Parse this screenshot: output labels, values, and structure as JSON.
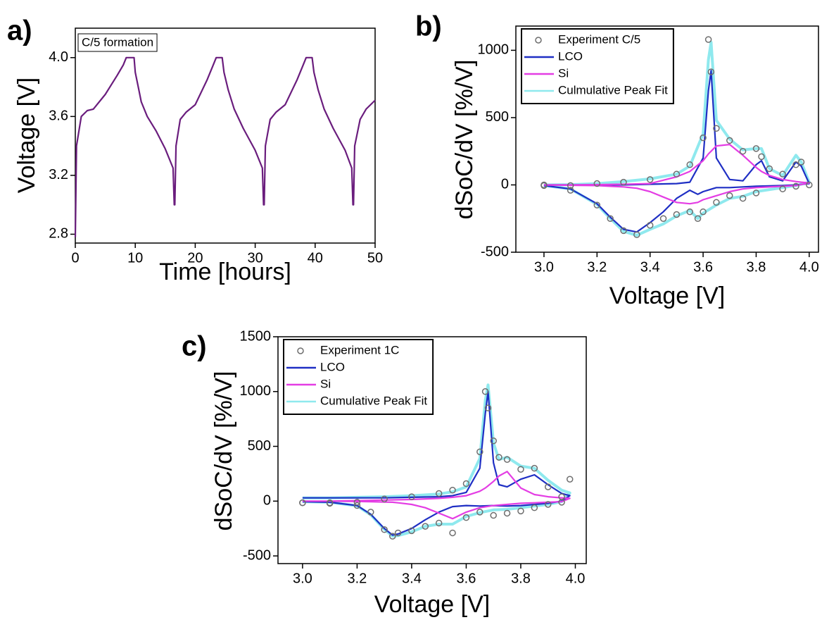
{
  "chart_data": [
    {
      "type": "line",
      "panel_label": "a)",
      "x_label": "Time [hours]",
      "y_label": "Voltage [V]",
      "annotation": "C/5 formation",
      "xlim": [
        0,
        50
      ],
      "ylim": [
        2.74,
        4.2
      ],
      "xticks": [
        0,
        10,
        20,
        30,
        40,
        50
      ],
      "yticks": [
        2.8,
        3.2,
        3.6,
        {
          "value": 4,
          "label": "4.0"
        }
      ],
      "x": [
        0,
        0.2,
        1,
        2,
        3,
        5,
        7,
        8,
        8.5,
        9.8,
        10,
        10.5,
        11,
        12,
        13.5,
        15,
        16.3,
        16.5,
        16.6,
        16.8,
        17.5,
        18.5,
        20,
        22,
        23,
        23.5,
        24.5,
        24.8,
        25.5,
        26.5,
        28,
        30,
        31.2,
        31.4,
        31.5,
        31.7,
        32.5,
        33.5,
        35,
        37,
        38,
        38.5,
        39.5,
        39.8,
        40.5,
        41.5,
        43,
        45,
        46.1,
        46.3,
        46.4,
        46.6,
        47.5,
        48.5,
        50
      ],
      "series": [
        {
          "color": "#6a1d7d",
          "values": [
            2.78,
            3.4,
            3.6,
            3.64,
            3.65,
            3.75,
            3.88,
            3.95,
            4.0,
            4.0,
            3.9,
            3.8,
            3.7,
            3.6,
            3.5,
            3.38,
            3.25,
            3.0,
            3.0,
            3.4,
            3.58,
            3.63,
            3.68,
            3.85,
            3.95,
            4.0,
            4.0,
            3.9,
            3.78,
            3.65,
            3.52,
            3.37,
            3.25,
            3.0,
            3.0,
            3.4,
            3.58,
            3.63,
            3.68,
            3.85,
            3.95,
            4.0,
            4.0,
            3.9,
            3.78,
            3.65,
            3.52,
            3.37,
            3.25,
            3.0,
            3.0,
            3.4,
            3.58,
            3.65,
            3.71
          ]
        }
      ]
    },
    {
      "type": "line",
      "panel_label": "b)",
      "x_label": "Voltage [V]",
      "y_label": "dSoC/dV [%/V]",
      "legend": "upper left",
      "xlim": [
        2.894,
        4.035
      ],
      "ylim": [
        -500,
        1180
      ],
      "xticks": [
        {
          "value": 3,
          "label": "3.0"
        },
        3.2,
        3.4,
        3.6,
        3.8,
        {
          "value": 4,
          "label": "4.0"
        }
      ],
      "yticks": [
        -500,
        0,
        500,
        1000
      ],
      "x": [
        3.0,
        3.1,
        3.2,
        3.3,
        3.4,
        3.5,
        3.55,
        3.6,
        3.62,
        3.63,
        3.65,
        3.7,
        3.75,
        3.8,
        3.82,
        3.85,
        3.9,
        3.95,
        3.97,
        4.0,
        3.95,
        3.9,
        3.8,
        3.75,
        3.7,
        3.65,
        3.6,
        3.58,
        3.55,
        3.5,
        3.45,
        3.4,
        3.35,
        3.3,
        3.25,
        3.2,
        3.1,
        3.0
      ],
      "series": [
        {
          "name": "Experiment C/5",
          "color": "#6e6e6e",
          "marker": "circle",
          "values": [
            0,
            -5,
            10,
            20,
            40,
            80,
            150,
            350,
            1080,
            840,
            420,
            330,
            250,
            270,
            210,
            120,
            80,
            150,
            170,
            0,
            -10,
            -30,
            -60,
            -100,
            -80,
            -130,
            -200,
            -250,
            -200,
            -220,
            -250,
            -300,
            -370,
            -340,
            -250,
            -150,
            -40,
            -5
          ]
        },
        {
          "name": "LCO",
          "color": "#1f2fc4",
          "values": [
            0,
            0,
            0,
            0,
            5,
            10,
            20,
            200,
            700,
            850,
            200,
            40,
            30,
            150,
            180,
            60,
            30,
            170,
            140,
            10,
            0,
            -5,
            -10,
            -15,
            -20,
            -20,
            -50,
            -70,
            -40,
            -100,
            -200,
            -280,
            -350,
            -330,
            -240,
            -140,
            -30,
            -5
          ]
        },
        {
          "name": "Si",
          "color": "#e43de4",
          "values": [
            0,
            0,
            2,
            5,
            10,
            60,
            100,
            180,
            230,
            250,
            290,
            300,
            220,
            130,
            100,
            70,
            40,
            25,
            20,
            15,
            -5,
            -10,
            -20,
            -30,
            -50,
            -80,
            -110,
            -130,
            -140,
            -130,
            -90,
            -50,
            -25,
            -15,
            -10,
            -5,
            -3,
            0
          ]
        },
        {
          "name": "Culmulative Peak Fit",
          "color": "#8fe9ee",
          "values": [
            0,
            2,
            10,
            25,
            45,
            80,
            140,
            380,
            930,
            1060,
            480,
            340,
            260,
            270,
            270,
            120,
            70,
            220,
            170,
            20,
            -5,
            -20,
            -50,
            -85,
            -100,
            -150,
            -210,
            -250,
            -190,
            -230,
            -290,
            -330,
            -375,
            -345,
            -250,
            -145,
            -30,
            -5
          ]
        }
      ]
    },
    {
      "type": "line",
      "panel_label": "c)",
      "x_label": "Voltage [V]",
      "y_label": "dSoC/dV [%/V]",
      "legend": "upper left",
      "xlim": [
        2.91,
        4.04
      ],
      "ylim": [
        -570,
        1500
      ],
      "xticks": [
        {
          "value": 3,
          "label": "3.0"
        },
        3.2,
        3.4,
        3.6,
        3.8,
        {
          "value": 4,
          "label": "4.0"
        }
      ],
      "yticks": [
        -500,
        0,
        500,
        1000,
        1500
      ],
      "x": [
        3.0,
        3.1,
        3.2,
        3.3,
        3.4,
        3.5,
        3.55,
        3.6,
        3.65,
        3.67,
        3.68,
        3.7,
        3.72,
        3.75,
        3.8,
        3.85,
        3.9,
        3.95,
        3.98,
        3.95,
        3.9,
        3.85,
        3.8,
        3.75,
        3.7,
        3.65,
        3.6,
        3.55,
        3.5,
        3.45,
        3.4,
        3.35,
        3.33,
        3.3,
        3.25,
        3.2,
        3.1,
        3.0
      ],
      "series": [
        {
          "name": "Experiment 1C",
          "color": "#6e6e6e",
          "marker": "circle",
          "values": [
            -15,
            -15,
            -10,
            20,
            40,
            70,
            100,
            160,
            450,
            1000,
            850,
            550,
            400,
            380,
            290,
            300,
            130,
            40,
            200,
            -10,
            -30,
            -60,
            -90,
            -110,
            -130,
            -100,
            -150,
            -290,
            -200,
            -230,
            -270,
            -290,
            -320,
            -260,
            -100,
            -40,
            -20,
            -15
          ]
        },
        {
          "name": "LCO",
          "color": "#1f2fc4",
          "values": [
            30,
            30,
            30,
            30,
            35,
            40,
            50,
            80,
            300,
            800,
            1000,
            350,
            150,
            130,
            200,
            240,
            150,
            70,
            50,
            0,
            -20,
            -30,
            -40,
            -45,
            -40,
            -45,
            -40,
            -50,
            -100,
            -170,
            -250,
            -300,
            -310,
            -250,
            -120,
            -40,
            -10,
            -5
          ]
        },
        {
          "name": "Si",
          "color": "#e43de4",
          "values": [
            0,
            0,
            5,
            10,
            15,
            25,
            35,
            50,
            90,
            120,
            140,
            180,
            230,
            270,
            120,
            60,
            40,
            30,
            25,
            -5,
            -10,
            -15,
            -20,
            -30,
            -40,
            -60,
            -100,
            -160,
            -110,
            -60,
            -30,
            -15,
            -10,
            -8,
            -5,
            -3,
            0,
            0
          ]
        },
        {
          "name": "Cumulative Peak Fit",
          "color": "#8fe9ee",
          "values": [
            30,
            30,
            35,
            40,
            50,
            65,
            85,
            130,
            390,
            920,
            1060,
            530,
            380,
            400,
            320,
            300,
            190,
            100,
            75,
            -5,
            -30,
            -45,
            -60,
            -75,
            -80,
            -105,
            -140,
            -210,
            -210,
            -230,
            -280,
            -315,
            -320,
            -258,
            -125,
            -43,
            -10,
            -5
          ]
        }
      ]
    }
  ]
}
